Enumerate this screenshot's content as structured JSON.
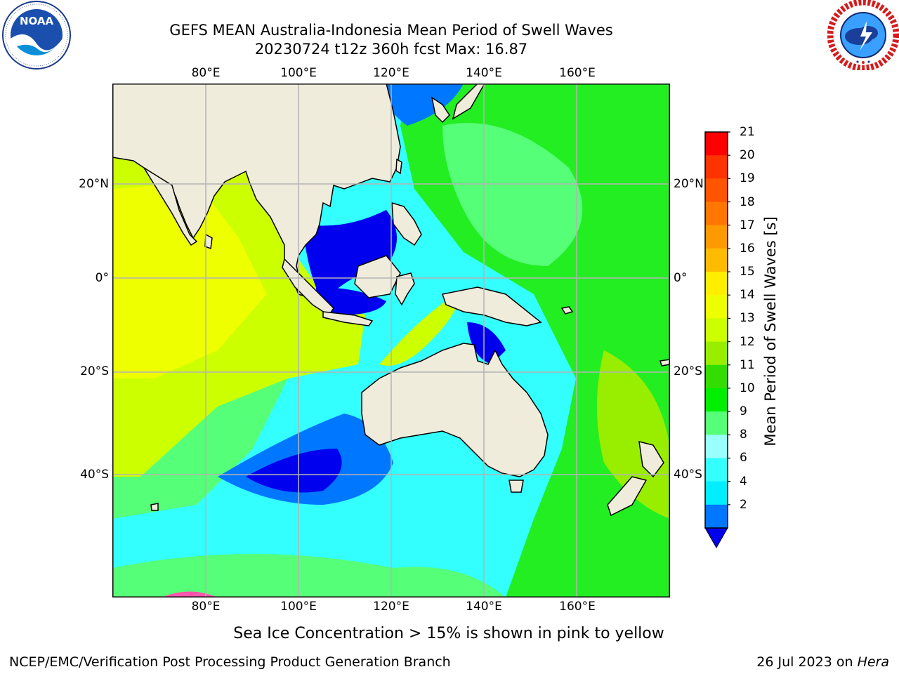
{
  "header": {
    "title_line1": "GEFS MEAN Australia-Indonesia Mean Period of Swell Waves",
    "title_line2": "20230724 t12z 360h fcst   Max: 16.87"
  },
  "logos": {
    "left": {
      "text": "NOAA",
      "ring_text": "NATIONAL OCEANIC AND ATMOSPHERIC ADMINISTRATION · U.S. DEPARTMENT OF COMMERCE"
    },
    "right": {
      "ring_text": "NATIONAL WEATHER SERVICE"
    }
  },
  "map": {
    "lon_labels": [
      "80°E",
      "100°E",
      "120°E",
      "140°E",
      "160°E"
    ],
    "lat_labels": [
      "20°N",
      "0°",
      "20°S",
      "40°S"
    ],
    "land_color": "#efecdc",
    "grid_color": "#b4b4b4"
  },
  "colorbar": {
    "title": "Mean Period of Swell Waves [s]",
    "labels": [
      "21",
      "20",
      "19",
      "18",
      "17",
      "16",
      "15",
      "14",
      "13",
      "12",
      "11",
      "10",
      "9",
      "8",
      "6",
      "4",
      "2"
    ],
    "bins_top_to_bottom": [
      {
        "color": "#ff0000"
      },
      {
        "color": "#ff3300"
      },
      {
        "color": "#ff5500"
      },
      {
        "color": "#ff7700"
      },
      {
        "color": "#ff9900"
      },
      {
        "color": "#ffbb00"
      },
      {
        "color": "#ffee00"
      },
      {
        "color": "#eeff00"
      },
      {
        "color": "#ccff00"
      },
      {
        "color": "#99ee00"
      },
      {
        "color": "#33dd00"
      },
      {
        "color": "#00ee00"
      },
      {
        "color": "#55ff77"
      },
      {
        "color": "#99ffff"
      },
      {
        "color": "#33ffff"
      },
      {
        "color": "#00eeff"
      },
      {
        "color": "#0077ff"
      }
    ],
    "extend_min_color": "#0000ee"
  },
  "ice_note": "Sea Ice Concentration > 15% is shown in pink to yellow",
  "footer": {
    "left": "NCEP/EMC/Verification Post Processing Product Generation Branch",
    "right_date": "26 Jul 2023 on ",
    "right_host": "Hera"
  }
}
